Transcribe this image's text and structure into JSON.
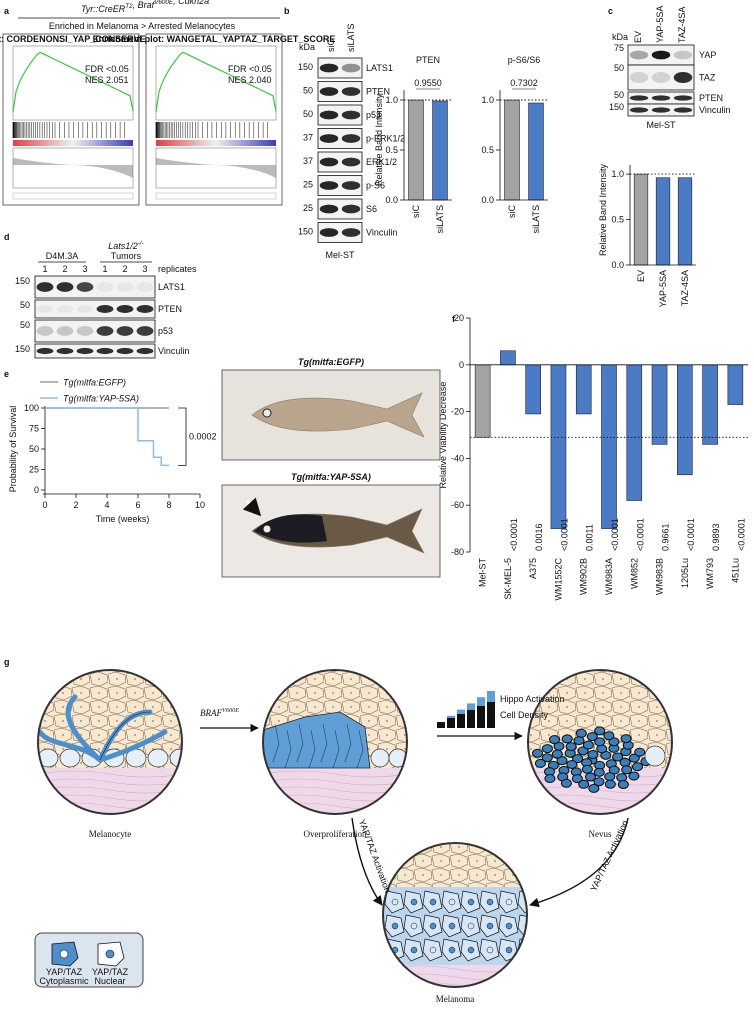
{
  "panel_labels": [
    "a",
    "b",
    "c",
    "d",
    "e",
    "f",
    "g"
  ],
  "panel_a": {
    "genotype": [
      {
        "text": "Tyr::CreER",
        "sup": "T2"
      },
      {
        "text": ", Braf",
        "sup": "V600E"
      },
      {
        "text": ", Cdkn2a",
        "sup": "-/-"
      }
    ],
    "subtitle": "Enriched in Melanoma > Arrested Melanocytes",
    "plots": [
      {
        "header": "Enrichment plot: CORDENONSI_YAP_CONSERVED_SIGNATURE",
        "fdr": "FDR <0.05",
        "nes": "NES 2.051"
      },
      {
        "header": "Enrichment plot: WANGETAL_YAPTAZ_TARGET_SCORE",
        "fdr": "FDR <0.05",
        "nes": "NES 2.040"
      }
    ]
  },
  "panel_b": {
    "unit": "kDa",
    "lanes": [
      "siC",
      "siLATS"
    ],
    "cell_line": "Mel-ST",
    "rows": [
      {
        "kda": 150,
        "label": "LATS1"
      },
      {
        "kda": 50,
        "label": "PTEN"
      },
      {
        "kda": 50,
        "label": "p53"
      },
      {
        "kda": 37,
        "label": "p-ERK1/2"
      },
      {
        "kda": 37,
        "label": "ERK1/2"
      },
      {
        "kda": 25,
        "label": "p-S6"
      },
      {
        "kda": 25,
        "label": "S6"
      },
      {
        "kda": 150,
        "label": "Vinculin"
      }
    ]
  },
  "panel_c": {
    "unit": "kDa",
    "lanes": [
      "EV",
      "YAP-5SA",
      "TAZ-4SA"
    ],
    "cell_line": "Mel-ST",
    "rows": [
      {
        "kda": 75,
        "label": "YAP"
      },
      {
        "kda": 50,
        "label": "TAZ"
      },
      {
        "kda": 50,
        "label": "PTEN"
      },
      {
        "kda": 150,
        "label": "Vinculin"
      }
    ]
  },
  "panel_d": {
    "groups": [
      "D4M.3A",
      {
        "text": "Lats1/2",
        "sup": "-/-",
        "line2": "Tumors"
      }
    ],
    "replicates": [
      1,
      2,
      3,
      1,
      2,
      3
    ],
    "replicates_label": "replicates",
    "rows": [
      {
        "kda": 150,
        "label": "LATS1"
      },
      {
        "kda": 50,
        "label": "PTEN"
      },
      {
        "kda": 50,
        "label": "p53"
      },
      {
        "kda": 150,
        "label": "Vinculin"
      }
    ]
  },
  "panel_e": {
    "photo_captions": [
      "Tg(mitfa:EGFP)",
      "Tg(mitfa:YAP-5SA)"
    ]
  },
  "panel_g": {
    "braf": {
      "text": "BRAF",
      "sup": "V600E"
    },
    "hippo": "Hippo Activation",
    "density": "Cell Density",
    "stages": [
      "Melanocyte",
      "Overproliferation",
      "Nevus",
      "Melanoma"
    ],
    "activation": [
      "YAP/TAZ Activation",
      "YAP/TAZ Activation"
    ],
    "legend": [
      {
        "line1": "YAP/TAZ",
        "line2": "Cytoplasmic"
      },
      {
        "line1": "YAP/TAZ",
        "line2": "Nuclear"
      }
    ]
  },
  "chart_data": [
    {
      "type": "bar",
      "title": "PTEN",
      "ylabel": "Relative Band Intensity",
      "categories": [
        "siC",
        "siLATS"
      ],
      "values": [
        1.0,
        0.99
      ],
      "colors": [
        "#a3a3a3",
        "#4a7bc4"
      ],
      "ylim": [
        0,
        1.1
      ],
      "yticks": [
        {
          "value": 0,
          "label": "0.0"
        },
        {
          "value": 0.5,
          "label": "0.5"
        },
        {
          "value": 1,
          "label": "1.0"
        }
      ],
      "annotations": [
        "0.9550"
      ]
    },
    {
      "type": "bar",
      "title": "p-S6/S6",
      "categories": [
        "siC",
        "siLATS"
      ],
      "values": [
        1.0,
        0.97
      ],
      "colors": [
        "#a3a3a3",
        "#4a7bc4"
      ],
      "ylim": [
        0,
        1.1
      ],
      "yticks": [
        {
          "value": 0,
          "label": "0.0"
        },
        {
          "value": 0.5,
          "label": "0.5"
        },
        {
          "value": 1,
          "label": "1.0"
        }
      ],
      "annotations": [
        "0.7302"
      ]
    },
    {
      "type": "bar",
      "ylabel": "Relative Band Intensity",
      "categories": [
        "EV",
        "YAP-5SA",
        "TAZ-4SA"
      ],
      "values": [
        1.0,
        0.96,
        0.96
      ],
      "colors": [
        "#a3a3a3",
        "#4a7bc4",
        "#4a7bc4"
      ],
      "ylim": [
        0,
        1.1
      ],
      "yticks": [
        {
          "value": 0,
          "label": "0.0"
        },
        {
          "value": 0.5,
          "label": "0.5"
        },
        {
          "value": 1,
          "label": "1.0"
        }
      ]
    },
    {
      "type": "line",
      "ylabel": "Probability of Survival",
      "xlabel": "Time (weeks)",
      "xlim": [
        0,
        10
      ],
      "xticks": [
        0,
        2,
        4,
        6,
        8,
        10
      ],
      "ylim": [
        0,
        100
      ],
      "yticks": [
        0,
        25,
        50,
        75,
        100
      ],
      "annotations": [
        "0.0002"
      ],
      "series": [
        {
          "name": "Tg(mitfa:EGFP)",
          "color": "#9a9a9a",
          "x": [
            0,
            8
          ],
          "values": [
            100,
            100
          ]
        },
        {
          "name": "Tg(mitfa:YAP-5SA)",
          "color": "#8cbbe6",
          "x": [
            0,
            6,
            6,
            7,
            7,
            7.5,
            7.5,
            8
          ],
          "values": [
            100,
            100,
            60,
            60,
            40,
            40,
            30,
            30
          ]
        }
      ]
    },
    {
      "type": "bar",
      "ylabel": "Relative Viability Decrease",
      "categories": [
        "Mel-ST",
        "SK-MEL-5",
        "A375",
        "WM1552C",
        "WM902B",
        "WM983A",
        "WM852",
        "WM983B",
        "1205Lu",
        "WM793",
        "451Lu"
      ],
      "values": [
        -31,
        6,
        -21,
        -70,
        -21,
        -70,
        -58,
        -34,
        -47,
        -34,
        -17
      ],
      "colors": [
        "#a3a3a3",
        "#4a7bc4",
        "#4a7bc4",
        "#4a7bc4",
        "#4a7bc4",
        "#4a7bc4",
        "#4a7bc4",
        "#4a7bc4",
        "#4a7bc4",
        "#4a7bc4",
        "#4a7bc4"
      ],
      "ylim": [
        -80,
        20
      ],
      "yticks": [
        -80,
        -60,
        -40,
        -20,
        0,
        20
      ],
      "p_values": [
        null,
        "<0.0001",
        "0.0016",
        "<0.0001",
        "0.0011",
        "<0.0001",
        "<0.0001",
        "0.9661",
        "<0.0001",
        "0.9893",
        "<0.0001"
      ]
    }
  ]
}
